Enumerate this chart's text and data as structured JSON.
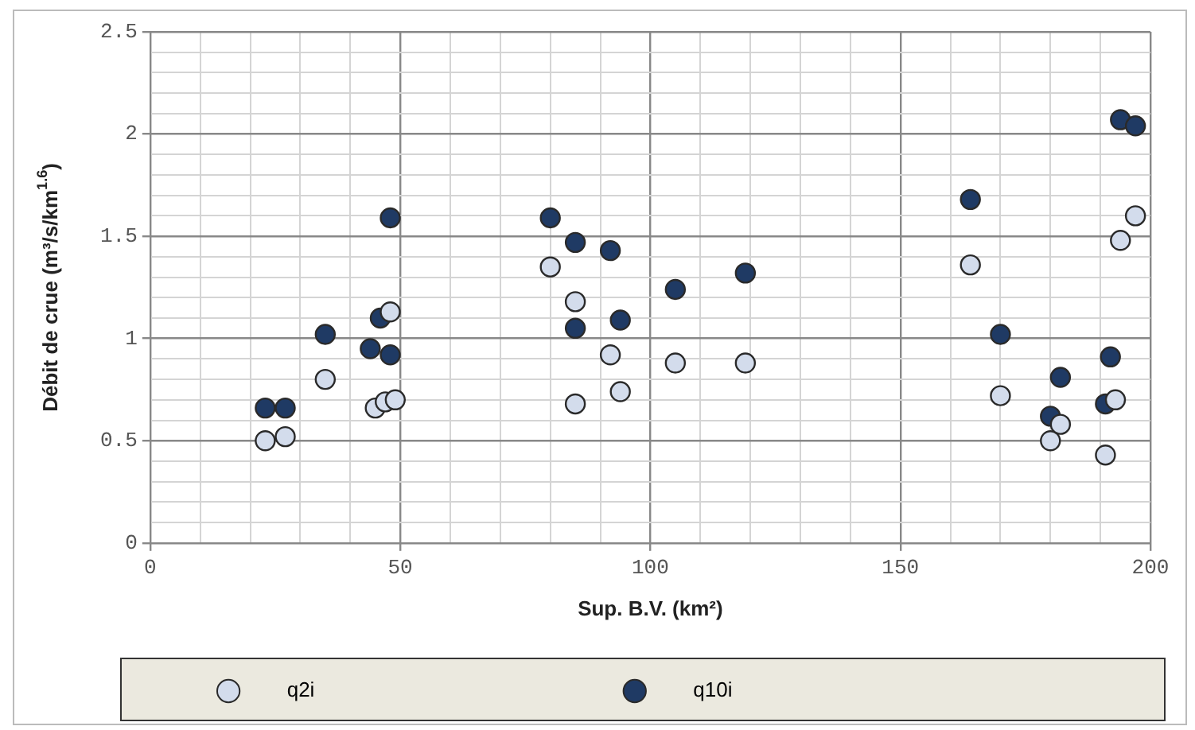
{
  "chart_data": {
    "type": "scatter",
    "xlabel": "Sup. B.V. (km²)",
    "ylabel": "Débit de crue (m³/s/km$^{1.6}$)",
    "xlim": [
      0,
      200
    ],
    "ylim": [
      0,
      2.5
    ],
    "xticks": [
      0,
      {
        "value": 10,
        "label": null
      },
      {
        "value": 20,
        "label": null
      },
      {
        "value": 30,
        "label": null
      },
      {
        "value": 40,
        "label": null
      },
      50,
      {
        "value": 60,
        "label": null
      },
      {
        "value": 70,
        "label": null
      },
      {
        "value": 80,
        "label": null
      },
      {
        "value": 90,
        "label": null
      },
      100,
      {
        "value": 110,
        "label": null
      },
      {
        "value": 120,
        "label": null
      },
      {
        "value": 130,
        "label": null
      },
      {
        "value": 140,
        "label": null
      },
      150,
      {
        "value": 160,
        "label": null
      },
      {
        "value": 170,
        "label": null
      },
      {
        "value": 180,
        "label": null
      },
      {
        "value": 190,
        "label": null
      },
      200
    ],
    "yticks": [
      0,
      {
        "value": 0.1,
        "label": null
      },
      {
        "value": 0.2,
        "label": null
      },
      {
        "value": 0.3,
        "label": null
      },
      {
        "value": 0.4,
        "label": null
      },
      0.5,
      {
        "value": 0.6,
        "label": null
      },
      {
        "value": 0.7,
        "label": null
      },
      {
        "value": 0.8,
        "label": null
      },
      {
        "value": 0.9,
        "label": null
      },
      1,
      {
        "value": 1.1,
        "label": null
      },
      {
        "value": 1.2,
        "label": null
      },
      {
        "value": 1.3,
        "label": null
      },
      {
        "value": 1.4,
        "label": null
      },
      1.5,
      {
        "value": 1.6,
        "label": null
      },
      {
        "value": 1.7,
        "label": null
      },
      {
        "value": 1.8,
        "label": null
      },
      {
        "value": 1.9,
        "label": null
      },
      2,
      {
        "value": 2.1,
        "label": null
      },
      {
        "value": 2.2,
        "label": null
      },
      {
        "value": 2.3,
        "label": null
      },
      {
        "value": 2.4,
        "label": null
      },
      2.5
    ],
    "grid": true,
    "legend": "bottom",
    "marker": "circle",
    "series": [
      {
        "name": "q2i",
        "color": "#d3dcec",
        "x": [
          23,
          27,
          35,
          45,
          47,
          48,
          49,
          80,
          85,
          85,
          92,
          94,
          105,
          119,
          164,
          170,
          180,
          182,
          191,
          193,
          194,
          197
        ],
        "values": [
          0.5,
          0.52,
          0.8,
          0.66,
          0.69,
          1.13,
          0.7,
          1.35,
          0.68,
          1.18,
          0.92,
          0.74,
          0.88,
          0.88,
          1.36,
          0.72,
          0.5,
          0.58,
          0.43,
          0.7,
          1.48,
          1.6
        ]
      },
      {
        "name": "q10i",
        "color": "#1f3a64",
        "x": [
          23,
          27,
          35,
          44,
          46,
          48,
          48,
          80,
          85,
          85,
          92,
          94,
          105,
          119,
          164,
          170,
          180,
          182,
          191,
          192,
          194,
          197
        ],
        "values": [
          0.66,
          0.66,
          1.02,
          0.95,
          1.1,
          1.59,
          0.92,
          1.59,
          1.47,
          1.05,
          1.43,
          1.09,
          1.24,
          1.32,
          1.68,
          1.02,
          0.62,
          0.81,
          0.68,
          0.91,
          2.07,
          2.04
        ]
      }
    ]
  }
}
